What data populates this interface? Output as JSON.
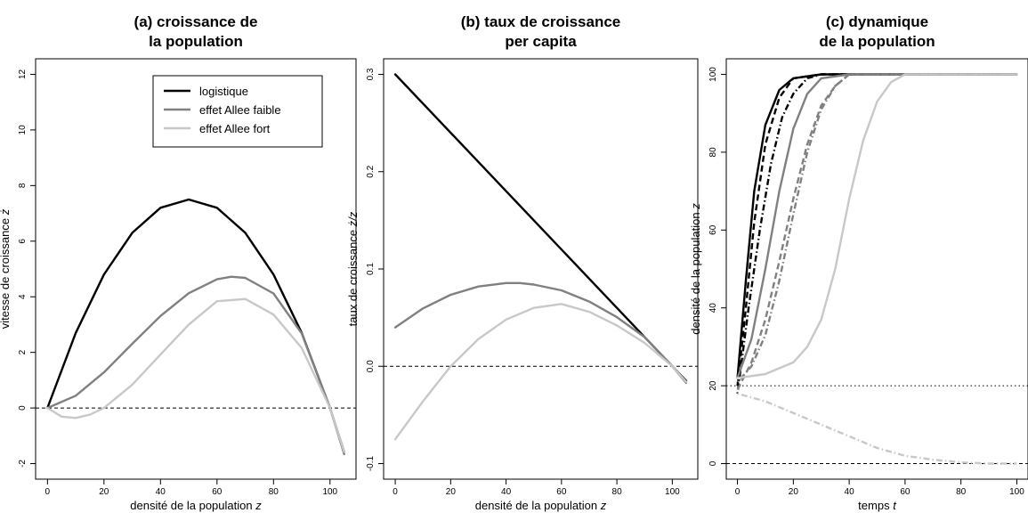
{
  "colors": {
    "logistic": "#000000",
    "weak": "#808080",
    "strong": "#c8c8c8",
    "ref": "#000000"
  },
  "chart_data": [
    {
      "type": "line",
      "title": "(a) croissance de\nla population",
      "xlabel": "densité de la population z",
      "ylabel": "vitesse de croissance ż",
      "xlim": [
        0,
        105
      ],
      "ylim": [
        -2,
        12
      ],
      "xticks": [
        "0",
        "20",
        "40",
        "60",
        "80",
        "100"
      ],
      "yticks": [
        "-2",
        "0",
        "2",
        "4",
        "6",
        "8",
        "10",
        "12"
      ],
      "legend": {
        "placement": "top-right",
        "entries": [
          "logistique",
          "effet Allee faible",
          "effet Allee fort"
        ]
      },
      "series": [
        {
          "name": "logistique",
          "x": [
            0,
            10,
            20,
            30,
            40,
            50,
            60,
            70,
            80,
            90,
            100,
            105
          ],
          "y": [
            0,
            2.7,
            4.8,
            6.3,
            7.2,
            7.5,
            7.2,
            6.3,
            4.8,
            2.7,
            0,
            -1.58
          ]
        },
        {
          "name": "effet Allee faible",
          "x": [
            0,
            10,
            20,
            30,
            40,
            50,
            60,
            65,
            70,
            80,
            90,
            100,
            105
          ],
          "y": [
            0,
            0.44,
            1.28,
            2.31,
            3.31,
            4.13,
            4.63,
            4.72,
            4.68,
            4.12,
            2.68,
            0,
            -1.66
          ]
        },
        {
          "name": "effet Allee fort",
          "x": [
            0,
            5,
            10,
            15,
            20,
            30,
            40,
            50,
            60,
            70,
            80,
            90,
            100,
            105
          ],
          "y": [
            0,
            -0.31,
            -0.36,
            -0.24,
            0,
            0.84,
            1.92,
            3.0,
            3.84,
            3.92,
            3.36,
            2.16,
            0,
            -1.58
          ]
        }
      ],
      "reference_lines": [
        {
          "y": 0,
          "style": "dashed"
        }
      ]
    },
    {
      "type": "line",
      "title": "(b) taux de croissance\nper capita",
      "xlabel": "densité de la population z",
      "ylabel": "taux de croissance ż/z",
      "xlim": [
        0,
        105
      ],
      "ylim": [
        -0.1,
        0.3
      ],
      "xticks": [
        "0",
        "20",
        "40",
        "60",
        "80",
        "100"
      ],
      "yticks": [
        "-0.1",
        "0.0",
        "0.1",
        "0.2",
        "0.3"
      ],
      "series": [
        {
          "name": "logistique",
          "x": [
            0,
            105
          ],
          "y": [
            0.3,
            -0.015
          ]
        },
        {
          "name": "effet Allee faible",
          "x": [
            0,
            10,
            20,
            30,
            40,
            45,
            50,
            60,
            70,
            80,
            90,
            100,
            105
          ],
          "y": [
            0.04,
            0.0595,
            0.0735,
            0.082,
            0.0855,
            0.0855,
            0.084,
            0.078,
            0.0665,
            0.0505,
            0.03,
            0,
            -0.017
          ]
        },
        {
          "name": "effet Allee fort",
          "x": [
            0,
            10,
            20,
            30,
            40,
            50,
            60,
            70,
            80,
            90,
            100,
            105
          ],
          "y": [
            -0.075,
            -0.036,
            0,
            0.028,
            0.048,
            0.06,
            0.064,
            0.056,
            0.042,
            0.024,
            0,
            -0.016
          ]
        }
      ],
      "reference_lines": [
        {
          "y": 0,
          "style": "dashed"
        }
      ]
    },
    {
      "type": "line",
      "title": "(c) dynamique\nde la population",
      "xlabel": "temps t",
      "ylabel": "densité de la population z",
      "xlim": [
        0,
        100
      ],
      "ylim": [
        0,
        100
      ],
      "xticks": [
        "0",
        "20",
        "40",
        "60",
        "80",
        "100"
      ],
      "yticks": [
        "0",
        "20",
        "40",
        "60",
        "80",
        "100"
      ],
      "series": [
        {
          "name": "logistique (continu)",
          "style": "solid",
          "color": "logistic",
          "x": [
            0,
            3,
            6,
            10,
            15,
            20,
            30,
            100
          ],
          "y": [
            22,
            47,
            70,
            87,
            96,
            99,
            100,
            100
          ]
        },
        {
          "name": "logistique (tirets)",
          "style": "dashed",
          "color": "logistic",
          "x": [
            0,
            3,
            6,
            10,
            15,
            20,
            30,
            100
          ],
          "y": [
            20,
            40,
            62,
            82,
            94,
            99,
            100,
            100
          ]
        },
        {
          "name": "logistique (pointillé)",
          "style": "dotdash",
          "color": "logistic",
          "x": [
            0,
            4,
            8,
            12,
            16,
            20,
            25,
            30,
            100
          ],
          "y": [
            18,
            40,
            60,
            77,
            89,
            95,
            99,
            100,
            100
          ]
        },
        {
          "name": "effet Allee faible (continu)",
          "style": "solid",
          "color": "weak",
          "x": [
            0,
            5,
            10,
            15,
            20,
            25,
            30,
            40,
            100
          ],
          "y": [
            22,
            32,
            50,
            70,
            86,
            95,
            99,
            100,
            100
          ]
        },
        {
          "name": "effet Allee faible (pointillé)",
          "style": "dotdash",
          "color": "weak",
          "x": [
            0,
            5,
            10,
            15,
            20,
            25,
            30,
            35,
            40,
            100
          ],
          "y": [
            21,
            25,
            33,
            47,
            64,
            80,
            91,
            97,
            100,
            100
          ]
        },
        {
          "name": "effet Allee faible (tirets)",
          "style": "dashed",
          "color": "weak",
          "x": [
            0,
            5,
            10,
            15,
            20,
            25,
            30,
            35,
            40,
            100
          ],
          "y": [
            19,
            26,
            37,
            52,
            68,
            82,
            92,
            97,
            100,
            100
          ]
        },
        {
          "name": "effet Allee fort (continu)",
          "style": "solid",
          "color": "strong",
          "x": [
            0,
            10,
            20,
            25,
            30,
            35,
            40,
            45,
            50,
            55,
            60,
            100
          ],
          "y": [
            22,
            23,
            26,
            30,
            37,
            50,
            68,
            83,
            93,
            98,
            100,
            100
          ]
        },
        {
          "name": "effet Allee fort (pointillé)",
          "style": "dotdash",
          "color": "strong",
          "x": [
            0,
            10,
            20,
            30,
            40,
            50,
            60,
            70,
            80,
            90,
            100
          ],
          "y": [
            18,
            16,
            13,
            10,
            7,
            4,
            2,
            1,
            0.3,
            0,
            0
          ]
        }
      ],
      "reference_lines": [
        {
          "y": 20,
          "style": "dotted"
        },
        {
          "y": 0,
          "style": "dashed"
        }
      ]
    }
  ]
}
